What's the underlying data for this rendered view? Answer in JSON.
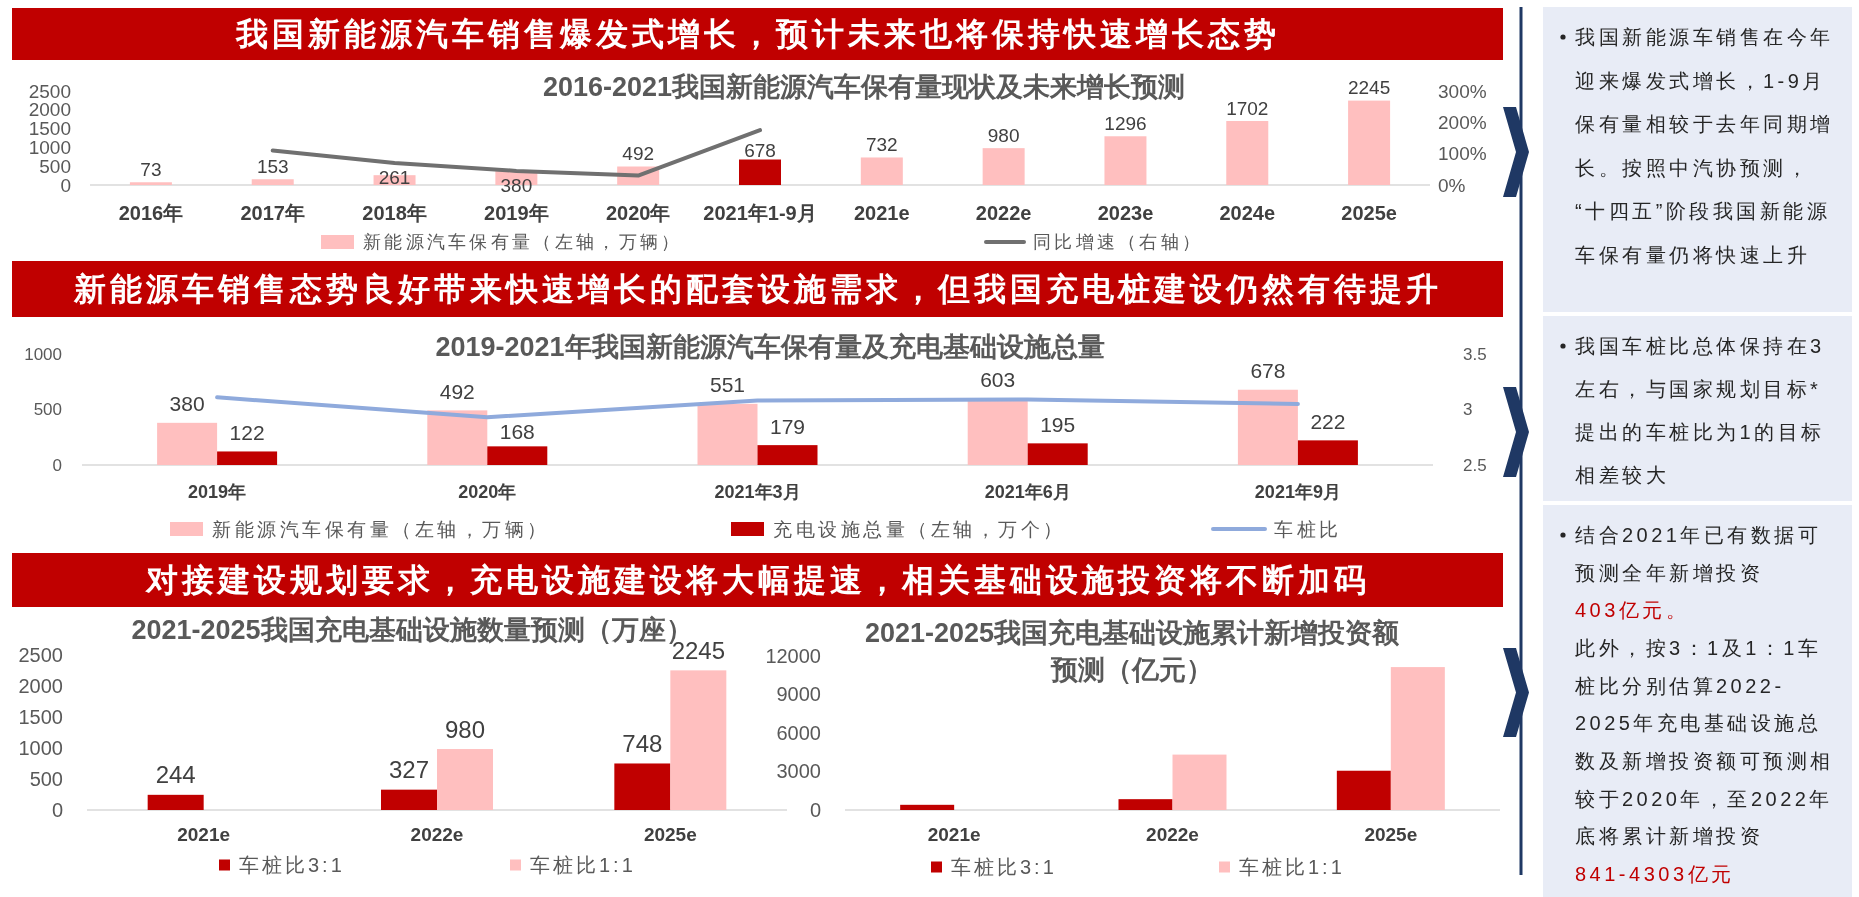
{
  "chart_data": [
    {
      "type": "other",
      "title": "我国新能源汽车销售爆发式增长，预计未来也将保持快速增长态势"
    },
    {
      "type": "bar",
      "title": "2016-2021我国新能源汽车保有量现状及未来增长预测",
      "categories": [
        "2016年",
        "2017年",
        "2018年",
        "2019年",
        "2020年",
        "2021年1-9月",
        "2021e",
        "2022e",
        "2023e",
        "2024e",
        "2025e"
      ],
      "series": [
        {
          "name": "新能源汽车保有量（左轴，万辆）",
          "color": "#ffbfbf",
          "colors": [
            "#ffbfbf",
            "#ffbfbf",
            "#ffbfbf",
            "#ffbfbf",
            "#ffbfbf",
            "#c00000",
            "#ffbfbf",
            "#ffbfbf",
            "#ffbfbf",
            "#ffbfbf",
            "#ffbfbf"
          ],
          "values": [
            73,
            153,
            261,
            380,
            492,
            678,
            732,
            980,
            1296,
            1702,
            2245
          ],
          "value_labels": [
            "73",
            "153",
            "261",
            "380",
            "492",
            "678",
            "732",
            "980",
            "1296",
            "1702",
            "2245"
          ]
        },
        {
          "name": "同比增速（右轴）",
          "type": "line",
          "axis": "y2",
          "color": "#707070",
          "values": [
            null,
            110,
            70,
            45,
            30,
            175,
            null,
            null,
            null,
            null,
            null
          ]
        }
      ],
      "ylim": [
        0,
        2500
      ],
      "yticks": [
        0,
        500,
        1000,
        1500,
        2000,
        2500
      ],
      "y2lim": [
        0,
        300
      ],
      "y2ticks": [
        {
          "value": 0,
          "label": "0%"
        },
        {
          "value": 100,
          "label": "100%"
        },
        {
          "value": 200,
          "label": "200%"
        },
        {
          "value": 300,
          "label": "300%"
        }
      ],
      "legend": "bottom"
    },
    {
      "type": "other",
      "title": "新能源车销售态势良好带来快速增长的配套设施需求，但我国充电桩建设仍然有待提升"
    },
    {
      "type": "bar",
      "title": "2019-2021年我国新能源汽车保有量及充电基础设施总量",
      "categories": [
        "2019年",
        "2020年",
        "2021年3月",
        "2021年6月",
        "2021年9月"
      ],
      "series": [
        {
          "name": "新能源汽车保有量（左轴，万辆）",
          "color": "#ffbfbf",
          "values": [
            380,
            492,
            551,
            603,
            678
          ],
          "value_labels": [
            "380",
            "492",
            "551",
            "603",
            "678"
          ]
        },
        {
          "name": "充电设施总量（左轴，万个）",
          "color": "#c00000",
          "values": [
            122,
            168,
            179,
            195,
            222
          ],
          "value_labels": [
            "122",
            "168",
            "179",
            "195",
            "222"
          ]
        },
        {
          "name": "车桩比",
          "type": "line",
          "axis": "y2",
          "color": "#8faadc",
          "values": [
            3.11,
            2.93,
            3.08,
            3.09,
            3.05
          ]
        }
      ],
      "ylim": [
        0,
        1000
      ],
      "yticks": [
        0,
        500,
        1000
      ],
      "y2lim": [
        2.5,
        3.5
      ],
      "y2ticks": [
        2.5,
        3,
        3.5
      ],
      "legend": "bottom"
    },
    {
      "type": "other",
      "title": "对接建设规划要求，充电设施建设将大幅提速，相关基础设施投资将不断加码"
    },
    {
      "type": "bar",
      "title": "2021-2025我国充电基础设施数量预测（万座）",
      "categories": [
        "2021e",
        "2022e",
        "2025e"
      ],
      "series": [
        {
          "name": "车桩比3:1",
          "color": "#c00000",
          "values": [
            244,
            327,
            748
          ]
        },
        {
          "name": "车桩比1:1",
          "color": "#ffbfbf",
          "values": [
            null,
            980,
            2245
          ]
        }
      ],
      "ylim": [
        0,
        2500
      ],
      "yticks": [
        0,
        500,
        1000,
        1500,
        2000,
        2500
      ],
      "data_labels": true,
      "legend": "bottom"
    },
    {
      "type": "bar",
      "title": "2021-2025我国充电基础设施累计新增投资额预测（亿元）",
      "categories": [
        "2021e",
        "2022e",
        "2025e"
      ],
      "series": [
        {
          "name": "车桩比3:1",
          "color": "#c00000",
          "values": [
            403,
            841,
            3050
          ]
        },
        {
          "name": "车桩比1:1",
          "color": "#ffbfbf",
          "values": [
            null,
            4303,
            11100
          ]
        }
      ],
      "ylim": [
        0,
        12000
      ],
      "yticks": [
        0,
        3000,
        6000,
        9000,
        12000
      ],
      "legend": "bottom"
    },
    {
      "type": "other",
      "annotations": [
        "我国新能源车销售在今年迎来爆发式增长，1-9月保有量相较于去年同期增长。按照中汽协预测，“十四五”阶段我国新能源车保有量仍将快速上升"
      ]
    },
    {
      "type": "other",
      "annotations": [
        "我国车桩比总体保持在3左右，与国家规划目标*提出的车桩比为1的目标相差较大"
      ]
    },
    {
      "type": "other",
      "annotations": [
        "结合2021年已有数据可预测全年新增投资",
        "403亿元。",
        "此外，按3：1及1：1车桩比分别估算2022-2025年充电基础设施总数及新增投资额可预测相较于2020年，至2022年底将累计新增投资",
        "841-4303亿元"
      ],
      "colors": [
        "#262626",
        "#c00000",
        "#262626",
        "#c00000"
      ]
    }
  ]
}
